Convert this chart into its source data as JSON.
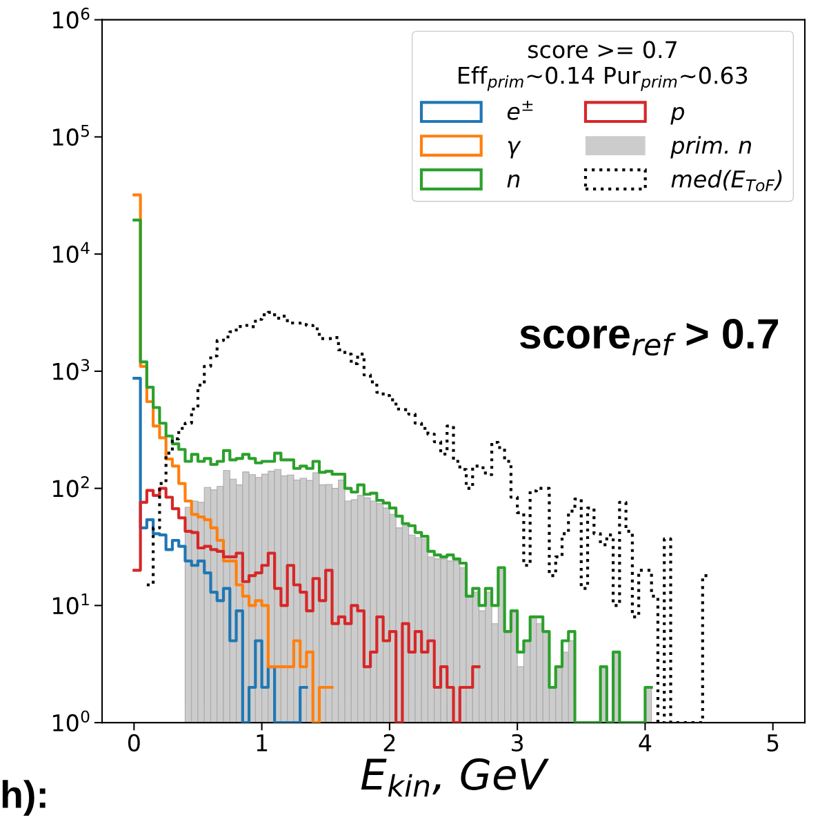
{
  "chart_data": {
    "type": "step",
    "xlabel": "E$_{kin}$, GeV",
    "legend_title": "score >= 0.7\nEff$_{prim}$~0.14 Pur$_{prim}$~0.63",
    "annotations": [
      "score$_{ref}$ > 0.7",
      "h):"
    ],
    "bins": [
      0,
      0.05,
      0.1,
      0.15,
      0.2,
      0.25,
      0.3,
      0.35,
      0.4,
      0.45,
      0.5,
      0.55,
      0.6,
      0.65,
      0.7,
      0.75,
      0.8,
      0.85,
      0.9,
      0.95,
      1,
      1.05,
      1.1,
      1.15,
      1.2,
      1.25,
      1.3,
      1.35,
      1.4,
      1.45,
      1.5,
      1.55,
      1.6,
      1.65,
      1.7,
      1.75,
      1.8,
      1.85,
      1.9,
      1.95,
      2,
      2.05,
      2.1,
      2.15,
      2.2,
      2.25,
      2.3,
      2.35,
      2.4,
      2.45,
      2.5,
      2.55,
      2.6,
      2.65,
      2.7,
      2.75,
      2.8,
      2.85,
      2.9,
      2.95,
      3,
      3.05,
      3.1,
      3.15,
      3.2,
      3.25,
      3.3,
      3.35,
      3.4,
      3.45,
      3.5,
      3.55,
      3.6,
      3.65,
      3.7,
      3.75,
      3.8,
      3.85,
      3.9,
      3.95,
      4,
      4.05,
      4.1,
      4.15,
      4.2,
      4.25,
      4.3,
      4.35,
      4.4,
      4.45,
      4.5,
      4.55,
      4.6,
      4.65,
      4.7,
      4.75,
      4.8,
      4.85,
      4.9,
      4.95,
      5
    ],
    "series": [
      {
        "name": "e$^{±}$",
        "color": "#1f77b4",
        "x": [
          0,
          0.05,
          0.1,
          0.15,
          0.2,
          0.25,
          0.3,
          0.35,
          0.4,
          0.45,
          0.5,
          0.55,
          0.6,
          0.65,
          0.7,
          0.75,
          0.8,
          0.85,
          0.9,
          0.95,
          1,
          1.05,
          1.1,
          1.15,
          1.2,
          1.25,
          1.3,
          1.35
        ],
        "values": [
          870,
          46,
          54,
          41,
          40,
          30,
          36,
          32,
          24,
          22,
          24,
          19,
          13,
          11,
          14,
          5,
          9,
          1,
          2,
          5,
          2,
          3,
          1,
          1,
          1,
          1,
          2,
          2
        ]
      },
      {
        "name": "γ",
        "color": "#ff7f0e",
        "x": [
          0,
          0.05,
          0.1,
          0.15,
          0.2,
          0.25,
          0.3,
          0.35,
          0.4,
          0.45,
          0.5,
          0.55,
          0.6,
          0.65,
          0.7,
          0.75,
          0.8,
          0.85,
          0.9,
          0.95,
          1,
          1.05,
          1.1,
          1.15,
          1.2,
          1.25,
          1.3,
          1.35,
          1.4,
          1.45,
          1.5,
          1.55
        ],
        "values": [
          32000,
          1100,
          550,
          340,
          270,
          178,
          155,
          110,
          78,
          60,
          57,
          54,
          46,
          36,
          24,
          24,
          15,
          12,
          10,
          11,
          10,
          3,
          3,
          3,
          3,
          5,
          3,
          4,
          1,
          2,
          2,
          2
        ]
      },
      {
        "name": "n",
        "color": "#2ca02c",
        "x": [
          0,
          0.05,
          0.1,
          0.15,
          0.2,
          0.25,
          0.3,
          0.35,
          0.4,
          0.45,
          0.5,
          0.55,
          0.6,
          0.65,
          0.7,
          0.75,
          0.8,
          0.85,
          0.9,
          0.95,
          1,
          1.05,
          1.1,
          1.15,
          1.2,
          1.25,
          1.3,
          1.35,
          1.4,
          1.45,
          1.5,
          1.55,
          1.6,
          1.65,
          1.7,
          1.75,
          1.8,
          1.85,
          1.9,
          1.95,
          2,
          2.05,
          2.1,
          2.15,
          2.2,
          2.25,
          2.3,
          2.35,
          2.4,
          2.45,
          2.5,
          2.55,
          2.6,
          2.65,
          2.7,
          2.75,
          2.8,
          2.85,
          2.9,
          2.95,
          3,
          3.05,
          3.1,
          3.15,
          3.2,
          3.25,
          3.3,
          3.35,
          3.4,
          3.45,
          3.5,
          3.55,
          3.6,
          3.65,
          3.7,
          3.75,
          3.8,
          3.85,
          3.9,
          3.95,
          4,
          4.05
        ],
        "values": [
          19500,
          1200,
          730,
          490,
          360,
          280,
          240,
          215,
          170,
          195,
          170,
          180,
          160,
          170,
          210,
          175,
          180,
          195,
          180,
          165,
          170,
          170,
          200,
          175,
          175,
          148,
          155,
          148,
          170,
          137,
          140,
          132,
          132,
          100,
          93,
          107,
          89,
          91,
          79,
          75,
          68,
          58,
          50,
          48,
          42,
          39,
          29,
          27,
          26,
          27,
          25,
          23,
          12,
          14,
          10,
          14,
          10,
          21,
          6,
          9,
          4,
          5,
          8,
          8,
          6,
          2,
          3,
          5,
          6,
          1,
          1,
          1,
          1,
          3,
          1,
          4,
          1,
          1,
          1,
          1,
          2,
          2
        ]
      },
      {
        "name": "p",
        "color": "#d62728",
        "x": [
          0,
          0.05,
          0.1,
          0.15,
          0.2,
          0.25,
          0.3,
          0.35,
          0.4,
          0.45,
          0.5,
          0.55,
          0.6,
          0.65,
          0.7,
          0.75,
          0.8,
          0.85,
          0.9,
          0.95,
          1,
          1.05,
          1.1,
          1.15,
          1.2,
          1.25,
          1.3,
          1.35,
          1.4,
          1.45,
          1.5,
          1.55,
          1.6,
          1.65,
          1.7,
          1.75,
          1.8,
          1.85,
          1.9,
          1.95,
          2,
          2.05,
          2.1,
          2.15,
          2.2,
          2.25,
          2.3,
          2.35,
          2.4,
          2.45,
          2.5,
          2.55,
          2.6,
          2.65,
          2.7
        ],
        "values": [
          20,
          76,
          96,
          87,
          100,
          84,
          67,
          56,
          43,
          42,
          31,
          32,
          30,
          29,
          26,
          26,
          28,
          16,
          18,
          19,
          22,
          28,
          14,
          10,
          22,
          15,
          13,
          9,
          17,
          11,
          20,
          7,
          8,
          7,
          10,
          9,
          3,
          4,
          8,
          5,
          6,
          1,
          7,
          4,
          6,
          4,
          5,
          2,
          3,
          2,
          1,
          2,
          2,
          3,
          3
        ]
      },
      {
        "name": "prim. n",
        "type": "histogram",
        "color": "#cccccc",
        "values": [
          null,
          null,
          null,
          null,
          null,
          null,
          null,
          null,
          69,
          78,
          76,
          102,
          97,
          104,
          142,
          120,
          107,
          138,
          131,
          124,
          132,
          140,
          145,
          128,
          130,
          118,
          122,
          117,
          136,
          107,
          108,
          100,
          118,
          78,
          80,
          87,
          83,
          78,
          74,
          68,
          60,
          46,
          48,
          40,
          38,
          37,
          26,
          25,
          25,
          24,
          24,
          21,
          12,
          13,
          9,
          13,
          7,
          20,
          6,
          9,
          3,
          5,
          8,
          7,
          6,
          2,
          3,
          4,
          5,
          1,
          1,
          1,
          1,
          3,
          1,
          4,
          1,
          1,
          1,
          1,
          2,
          null,
          null,
          null,
          null,
          null,
          null,
          null,
          null,
          null,
          null,
          null,
          null,
          null,
          null,
          null,
          null,
          null,
          null,
          null
        ]
      },
      {
        "name": "med(E$_{ToF}$)",
        "color": "#000000",
        "line_style": "dotted",
        "x": [
          0.1,
          0.15,
          0.2,
          0.25,
          0.3,
          0.35,
          0.4,
          0.45,
          0.5,
          0.55,
          0.6,
          0.65,
          0.7,
          0.75,
          0.8,
          0.85,
          0.9,
          0.95,
          1,
          1.05,
          1.1,
          1.15,
          1.2,
          1.25,
          1.3,
          1.35,
          1.4,
          1.45,
          1.5,
          1.55,
          1.6,
          1.65,
          1.7,
          1.75,
          1.8,
          1.85,
          1.9,
          1.95,
          2,
          2.05,
          2.1,
          2.15,
          2.2,
          2.25,
          2.3,
          2.35,
          2.4,
          2.45,
          2.5,
          2.55,
          2.6,
          2.65,
          2.7,
          2.75,
          2.8,
          2.85,
          2.9,
          2.95,
          3,
          3.05,
          3.1,
          3.15,
          3.2,
          3.25,
          3.3,
          3.35,
          3.4,
          3.45,
          3.5,
          3.55,
          3.6,
          3.65,
          3.7,
          3.75,
          3.8,
          3.85,
          3.9,
          3.95,
          4,
          4.05,
          4.1,
          4.15,
          4.2,
          4.25,
          4.3,
          4.35,
          4.4,
          4.45,
          4.5
        ],
        "values": [
          15,
          46,
          110,
          200,
          265,
          325,
          360,
          475,
          760,
          1100,
          1350,
          1830,
          1960,
          2170,
          2410,
          2460,
          2400,
          2770,
          3030,
          3180,
          2830,
          2950,
          2580,
          2580,
          2500,
          2460,
          2300,
          1900,
          1900,
          1940,
          1520,
          1400,
          1160,
          1400,
          930,
          810,
          660,
          620,
          570,
          475,
          470,
          430,
          360,
          325,
          290,
          250,
          196,
          340,
          170,
          145,
          100,
          155,
          150,
          131,
          247,
          223,
          170,
          84,
          62,
          22,
          95,
          100,
          100,
          18,
          26,
          41,
          64,
          81,
          14,
          68,
          41,
          33,
          40,
          10,
          76,
          43,
          8,
          20,
          20,
          12,
          1,
          37,
          1,
          1,
          1,
          1,
          1,
          18,
          18
        ]
      }
    ],
    "xlim": [
      -0.25,
      5.25
    ],
    "ylim": [
      1,
      1000000
    ],
    "xticks": [
      0,
      1,
      2,
      3,
      4,
      5
    ],
    "yticks": [
      {
        "value": 1,
        "label": "10$^{0}$"
      },
      {
        "value": 10,
        "label": "10$^{1}$"
      },
      {
        "value": 100,
        "label": "10$^{2}$"
      },
      {
        "value": 1000,
        "label": "10$^{3}$"
      },
      {
        "value": 10000,
        "label": "10$^{4}$"
      },
      {
        "value": 100000,
        "label": "10$^{5}$"
      },
      {
        "value": 1000000,
        "label": "10$^{6}$"
      }
    ],
    "log": "y",
    "grid": false,
    "legend": "top right"
  }
}
